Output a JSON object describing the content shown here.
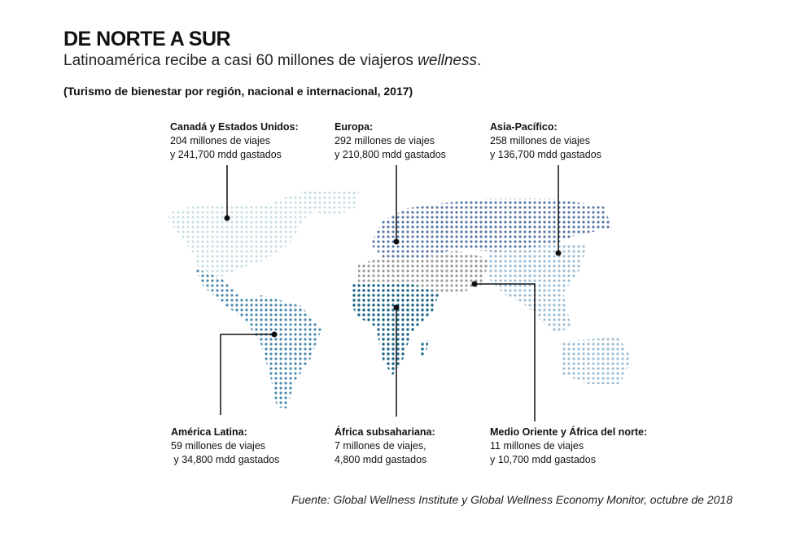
{
  "header": {
    "title": "DE NORTE A SUR",
    "subtitle_main": "Latinoamérica recibe a casi 60 millones de viajeros ",
    "subtitle_em": "wellness",
    "subtitle_end": ".",
    "note": "(Turismo de bienestar por región, nacional e internacional, 2017)"
  },
  "regions": [
    {
      "name": "Canadá y Estados Unidos:",
      "line1": "204 millones de viajes",
      "line2": "y 241,700 mdd gastados",
      "color": "#c3dbe2"
    },
    {
      "name": "Europa:",
      "line1": "292 millones de viajes",
      "line2": "y 210,800 mdd gastados",
      "color": "#5b79a6"
    },
    {
      "name": "Asia-Pacífico:",
      "line1": "258 millones de viajes",
      "line2": "y 136,700 mdd gastados",
      "color": "#9dbdd5"
    },
    {
      "name": "América Latina:",
      "line1": "59 millones de viajes",
      "line2": " y 34,800 mdd gastados",
      "color": "#4a88ad"
    },
    {
      "name": "África subsahariana:",
      "line1": "7 millones de viajes,",
      "line2": "4,800 mdd gastados",
      "color": "#1d6688"
    },
    {
      "name": "Medio Oriente y África del norte:",
      "line1": "11 millones de viajes",
      "line2": "y 10,700 mdd gastados",
      "color": "#9a9a9a"
    }
  ],
  "source": "Fuente: Global Wellness Institute y Global Wellness Economy Monitor, octubre de 2018"
}
